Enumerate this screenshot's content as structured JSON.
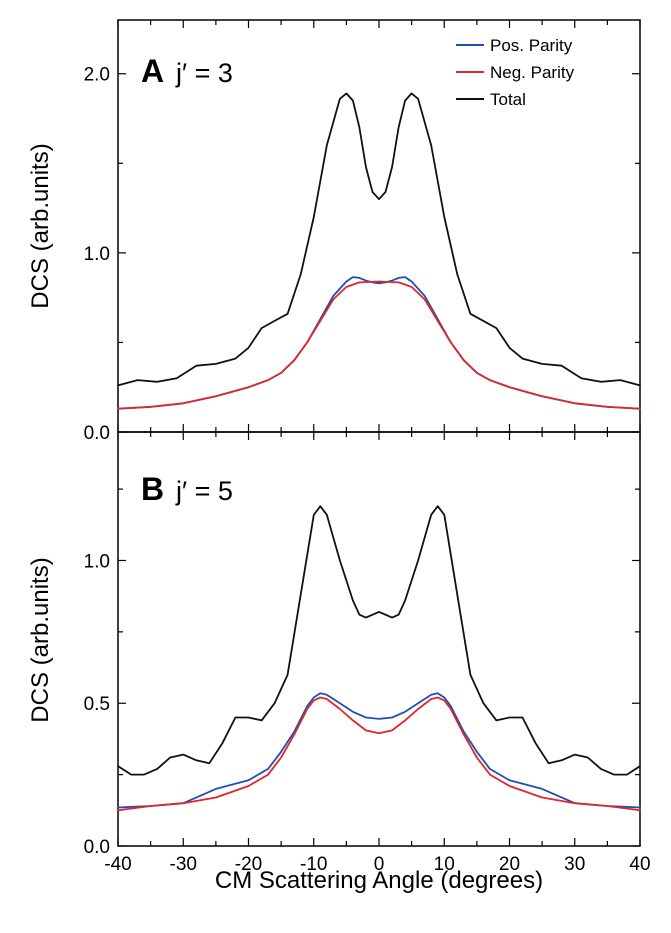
{
  "chart_data": [
    {
      "type": "line",
      "panel_letter": "A",
      "panel_label": "j′ = 3",
      "xlabel": "CM Scattering Angle (degrees)",
      "ylabel": "DCS (arb.units)",
      "xlim": [
        -40,
        40
      ],
      "ylim": [
        0,
        2.3
      ],
      "x_ticks": [
        -40,
        -30,
        -20,
        -10,
        0,
        10,
        20,
        30,
        40
      ],
      "y_ticks": [
        {
          "value": 0.0,
          "label": "0.0"
        },
        {
          "value": 1.0,
          "label": "1.0"
        },
        {
          "value": 2.0,
          "label": "2.0"
        }
      ],
      "legend": {
        "placement": "top-right"
      },
      "series": [
        {
          "name": "Pos. Parity",
          "color": "#1f4fb4",
          "points": [
            [
              -40,
              0.13
            ],
            [
              -35,
              0.14
            ],
            [
              -30,
              0.16
            ],
            [
              -25,
              0.2
            ],
            [
              -20,
              0.25
            ],
            [
              -17,
              0.29
            ],
            [
              -15,
              0.33
            ],
            [
              -13,
              0.4
            ],
            [
              -11,
              0.5
            ],
            [
              -9,
              0.63
            ],
            [
              -7,
              0.76
            ],
            [
              -5,
              0.84
            ],
            [
              -4,
              0.865
            ],
            [
              -3,
              0.86
            ],
            [
              -2,
              0.845
            ],
            [
              -1,
              0.835
            ],
            [
              0,
              0.83
            ],
            [
              1,
              0.835
            ],
            [
              2,
              0.845
            ],
            [
              3,
              0.86
            ],
            [
              4,
              0.865
            ],
            [
              5,
              0.84
            ],
            [
              7,
              0.76
            ],
            [
              9,
              0.63
            ],
            [
              11,
              0.5
            ],
            [
              13,
              0.4
            ],
            [
              15,
              0.33
            ],
            [
              17,
              0.29
            ],
            [
              20,
              0.25
            ],
            [
              25,
              0.2
            ],
            [
              30,
              0.16
            ],
            [
              35,
              0.14
            ],
            [
              40,
              0.13
            ]
          ]
        },
        {
          "name": "Neg. Parity",
          "color": "#e0262a",
          "points": [
            [
              -40,
              0.13
            ],
            [
              -35,
              0.14
            ],
            [
              -30,
              0.16
            ],
            [
              -25,
              0.2
            ],
            [
              -20,
              0.25
            ],
            [
              -17,
              0.29
            ],
            [
              -15,
              0.33
            ],
            [
              -13,
              0.4
            ],
            [
              -11,
              0.5
            ],
            [
              -9,
              0.62
            ],
            [
              -7,
              0.74
            ],
            [
              -5,
              0.81
            ],
            [
              -3,
              0.835
            ],
            [
              0,
              0.84
            ],
            [
              3,
              0.835
            ],
            [
              5,
              0.81
            ],
            [
              7,
              0.74
            ],
            [
              9,
              0.62
            ],
            [
              11,
              0.5
            ],
            [
              13,
              0.4
            ],
            [
              15,
              0.33
            ],
            [
              17,
              0.29
            ],
            [
              20,
              0.25
            ],
            [
              25,
              0.2
            ],
            [
              30,
              0.16
            ],
            [
              35,
              0.14
            ],
            [
              40,
              0.13
            ]
          ]
        },
        {
          "name": "Total",
          "color": "#111111",
          "points": [
            [
              -40,
              0.26
            ],
            [
              -37,
              0.29
            ],
            [
              -34,
              0.28
            ],
            [
              -31,
              0.3
            ],
            [
              -28,
              0.37
            ],
            [
              -25,
              0.38
            ],
            [
              -22,
              0.41
            ],
            [
              -20,
              0.47
            ],
            [
              -18,
              0.58
            ],
            [
              -16,
              0.62
            ],
            [
              -14,
              0.66
            ],
            [
              -12,
              0.88
            ],
            [
              -10,
              1.2
            ],
            [
              -8,
              1.6
            ],
            [
              -6,
              1.86
            ],
            [
              -5,
              1.89
            ],
            [
              -4,
              1.85
            ],
            [
              -3,
              1.7
            ],
            [
              -2,
              1.48
            ],
            [
              -1,
              1.34
            ],
            [
              0,
              1.3
            ],
            [
              1,
              1.34
            ],
            [
              2,
              1.48
            ],
            [
              3,
              1.7
            ],
            [
              4,
              1.85
            ],
            [
              5,
              1.89
            ],
            [
              6,
              1.86
            ],
            [
              8,
              1.6
            ],
            [
              10,
              1.2
            ],
            [
              12,
              0.88
            ],
            [
              14,
              0.66
            ],
            [
              16,
              0.62
            ],
            [
              18,
              0.58
            ],
            [
              20,
              0.47
            ],
            [
              22,
              0.41
            ],
            [
              25,
              0.38
            ],
            [
              28,
              0.37
            ],
            [
              31,
              0.3
            ],
            [
              34,
              0.28
            ],
            [
              37,
              0.29
            ],
            [
              40,
              0.26
            ]
          ]
        }
      ]
    },
    {
      "type": "line",
      "panel_letter": "B",
      "panel_label": "j′ = 5",
      "xlabel": "CM Scattering Angle (degrees)",
      "ylabel": "DCS (arb.units)",
      "xlim": [
        -40,
        40
      ],
      "ylim": [
        0,
        1.45
      ],
      "x_ticks": [
        -40,
        -30,
        -20,
        -10,
        0,
        10,
        20,
        30,
        40
      ],
      "y_ticks": [
        {
          "value": 0.0,
          "label": "0.0"
        },
        {
          "value": 0.5,
          "label": "0.5"
        },
        {
          "value": 1.0,
          "label": "1.0"
        }
      ],
      "series": [
        {
          "name": "Pos. Parity",
          "color": "#1f4fb4",
          "points": [
            [
              -40,
              0.135
            ],
            [
              -35,
              0.14
            ],
            [
              -30,
              0.15
            ],
            [
              -25,
              0.2
            ],
            [
              -20,
              0.23
            ],
            [
              -17,
              0.27
            ],
            [
              -15,
              0.33
            ],
            [
              -13,
              0.4
            ],
            [
              -11,
              0.49
            ],
            [
              -10,
              0.52
            ],
            [
              -9,
              0.535
            ],
            [
              -8,
              0.53
            ],
            [
              -6,
              0.5
            ],
            [
              -4,
              0.47
            ],
            [
              -2,
              0.45
            ],
            [
              0,
              0.445
            ],
            [
              2,
              0.45
            ],
            [
              4,
              0.47
            ],
            [
              6,
              0.5
            ],
            [
              8,
              0.53
            ],
            [
              9,
              0.535
            ],
            [
              10,
              0.52
            ],
            [
              11,
              0.49
            ],
            [
              13,
              0.4
            ],
            [
              15,
              0.33
            ],
            [
              17,
              0.27
            ],
            [
              20,
              0.23
            ],
            [
              25,
              0.2
            ],
            [
              30,
              0.15
            ],
            [
              35,
              0.14
            ],
            [
              40,
              0.135
            ]
          ]
        },
        {
          "name": "Neg. Parity",
          "color": "#e0262a",
          "points": [
            [
              -40,
              0.125
            ],
            [
              -35,
              0.14
            ],
            [
              -30,
              0.15
            ],
            [
              -25,
              0.17
            ],
            [
              -20,
              0.21
            ],
            [
              -17,
              0.25
            ],
            [
              -15,
              0.31
            ],
            [
              -13,
              0.39
            ],
            [
              -11,
              0.48
            ],
            [
              -10,
              0.51
            ],
            [
              -9,
              0.52
            ],
            [
              -8,
              0.515
            ],
            [
              -6,
              0.48
            ],
            [
              -4,
              0.44
            ],
            [
              -2,
              0.405
            ],
            [
              0,
              0.395
            ],
            [
              2,
              0.405
            ],
            [
              4,
              0.44
            ],
            [
              6,
              0.48
            ],
            [
              8,
              0.515
            ],
            [
              9,
              0.52
            ],
            [
              10,
              0.51
            ],
            [
              11,
              0.48
            ],
            [
              13,
              0.39
            ],
            [
              15,
              0.31
            ],
            [
              17,
              0.25
            ],
            [
              20,
              0.21
            ],
            [
              25,
              0.17
            ],
            [
              30,
              0.15
            ],
            [
              35,
              0.14
            ],
            [
              40,
              0.125
            ]
          ]
        },
        {
          "name": "Total",
          "color": "#111111",
          "points": [
            [
              -40,
              0.28
            ],
            [
              -38,
              0.25
            ],
            [
              -36,
              0.25
            ],
            [
              -34,
              0.27
            ],
            [
              -32,
              0.31
            ],
            [
              -30,
              0.32
            ],
            [
              -28,
              0.3
            ],
            [
              -26,
              0.29
            ],
            [
              -24,
              0.36
            ],
            [
              -22,
              0.45
            ],
            [
              -20,
              0.45
            ],
            [
              -18,
              0.44
            ],
            [
              -16,
              0.5
            ],
            [
              -14,
              0.6
            ],
            [
              -12,
              0.88
            ],
            [
              -10,
              1.16
            ],
            [
              -9,
              1.19
            ],
            [
              -8,
              1.16
            ],
            [
              -6,
              1.0
            ],
            [
              -4,
              0.86
            ],
            [
              -3,
              0.81
            ],
            [
              -2,
              0.8
            ],
            [
              0,
              0.82
            ],
            [
              2,
              0.8
            ],
            [
              3,
              0.81
            ],
            [
              4,
              0.86
            ],
            [
              6,
              1.0
            ],
            [
              8,
              1.16
            ],
            [
              9,
              1.19
            ],
            [
              10,
              1.16
            ],
            [
              12,
              0.88
            ],
            [
              14,
              0.6
            ],
            [
              16,
              0.5
            ],
            [
              18,
              0.44
            ],
            [
              20,
              0.45
            ],
            [
              22,
              0.45
            ],
            [
              24,
              0.36
            ],
            [
              26,
              0.29
            ],
            [
              28,
              0.3
            ],
            [
              30,
              0.32
            ],
            [
              32,
              0.31
            ],
            [
              34,
              0.27
            ],
            [
              36,
              0.25
            ],
            [
              38,
              0.25
            ],
            [
              40,
              0.28
            ]
          ]
        }
      ]
    }
  ]
}
